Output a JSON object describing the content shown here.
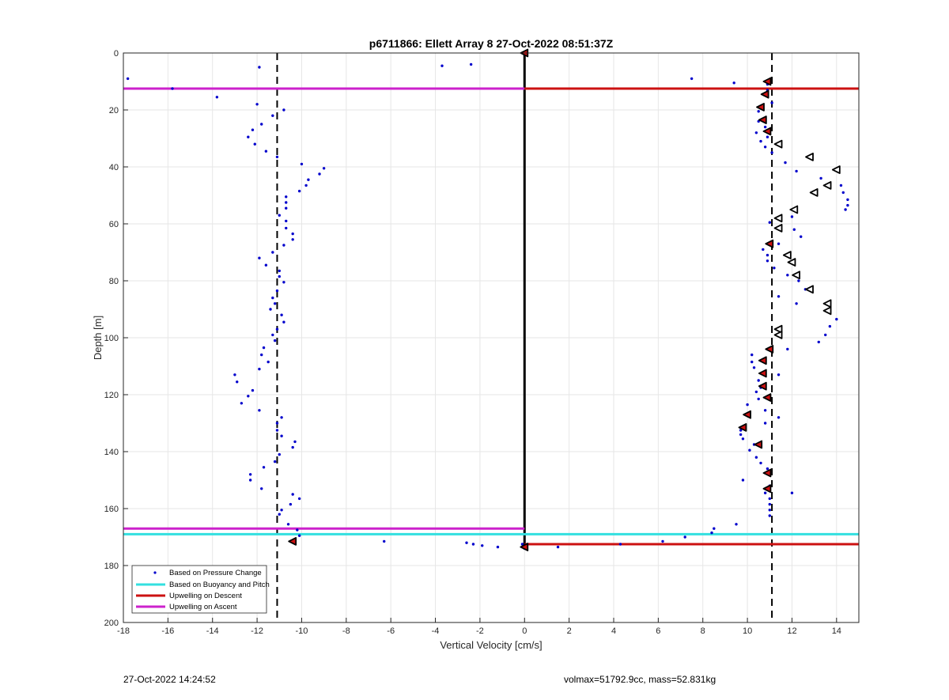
{
  "chart_data": {
    "type": "scatter",
    "title": "p6711866: Ellett Array 8 27-Oct-2022 08:51:37Z",
    "xlabel": "Vertical Velocity [cm/s]",
    "ylabel": "Depth [m]",
    "xlim": [
      -18,
      15
    ],
    "ylim": [
      0,
      200
    ],
    "y_reversed": true,
    "grid": true,
    "x_ticks": [
      -18,
      -16,
      -14,
      -12,
      -10,
      -8,
      -6,
      -4,
      -2,
      0,
      2,
      4,
      6,
      8,
      10,
      12,
      14
    ],
    "y_ticks": [
      0,
      20,
      40,
      60,
      80,
      100,
      120,
      140,
      160,
      180,
      200
    ],
    "legend_position": "bottom-left",
    "legend": [
      {
        "label": "Based on Pressure Change",
        "color": "#0000cc",
        "style": "dot"
      },
      {
        "label": "Based on Buoyancy and Pitch",
        "color": "#33e0e0",
        "style": "line"
      },
      {
        "label": "Upwelling on Descent",
        "color": "#cc1111",
        "style": "line"
      },
      {
        "label": "Upwelling on Ascent",
        "color": "#cc22cc",
        "style": "line"
      }
    ],
    "colors": {
      "pressure": "#0000cc",
      "buoyancy": "#33e0e0",
      "descent": "#cc1111",
      "ascent": "#cc22cc",
      "zero_line": "#000000",
      "dashed_lines": "#000000"
    },
    "dashed_vertical_lines": [
      -11.1,
      11.1
    ],
    "zero_line_x": 0,
    "horizontal_lines": [
      {
        "series": "ascent",
        "y": 12.5,
        "x": [
          -18,
          0
        ]
      },
      {
        "series": "descent",
        "y": 12.5,
        "x": [
          0,
          15
        ]
      },
      {
        "series": "ascent",
        "y": 167,
        "x": [
          -18,
          0
        ]
      },
      {
        "series": "buoyancy",
        "y": 169,
        "x": [
          -18,
          15
        ]
      },
      {
        "series": "descent",
        "y": 172.5,
        "x": [
          0,
          15
        ]
      }
    ],
    "pressure_points": [
      [
        -17.8,
        9
      ],
      [
        -15.8,
        12.5
      ],
      [
        -13.8,
        15.5
      ],
      [
        -11.9,
        5
      ],
      [
        -3.7,
        4.5
      ],
      [
        -2.4,
        4
      ],
      [
        -12,
        18
      ],
      [
        -10.8,
        20
      ],
      [
        -11.3,
        22
      ],
      [
        -11.8,
        25
      ],
      [
        -12.2,
        27
      ],
      [
        -12.4,
        29.5
      ],
      [
        -12.1,
        32
      ],
      [
        -11.6,
        34.5
      ],
      [
        -11.1,
        36.5
      ],
      [
        -10,
        39
      ],
      [
        -9,
        40.5
      ],
      [
        -9.2,
        42.5
      ],
      [
        -9.7,
        44.5
      ],
      [
        -9.8,
        46.5
      ],
      [
        -10.1,
        48.5
      ],
      [
        -10.7,
        50.5
      ],
      [
        -10.7,
        52.5
      ],
      [
        -10.7,
        54.5
      ],
      [
        -11,
        57
      ],
      [
        -10.7,
        59
      ],
      [
        -10.7,
        61.5
      ],
      [
        -10.4,
        63.5
      ],
      [
        -10.4,
        65.5
      ],
      [
        -10.8,
        67.5
      ],
      [
        -11.3,
        70
      ],
      [
        -11.9,
        72
      ],
      [
        -11.6,
        74.5
      ],
      [
        -11,
        76.5
      ],
      [
        -11,
        78.5
      ],
      [
        -10.8,
        80.5
      ],
      [
        -11.1,
        83.5
      ],
      [
        -11.3,
        86
      ],
      [
        -11.2,
        88
      ],
      [
        -11.4,
        90
      ],
      [
        -10.9,
        92
      ],
      [
        -10.8,
        94.5
      ],
      [
        -11.1,
        97
      ],
      [
        -11.3,
        99
      ],
      [
        -11.2,
        101
      ],
      [
        -11.7,
        103.5
      ],
      [
        -11.8,
        106
      ],
      [
        -11.5,
        108.5
      ],
      [
        -11.9,
        111
      ],
      [
        -13,
        113
      ],
      [
        -12.9,
        115.5
      ],
      [
        -12.2,
        118.5
      ],
      [
        -12.4,
        120.5
      ],
      [
        -12.7,
        123
      ],
      [
        -11.9,
        125.5
      ],
      [
        -10.9,
        128
      ],
      [
        -11.1,
        130
      ],
      [
        -11.1,
        132.5
      ],
      [
        -10.9,
        134.5
      ],
      [
        -10.3,
        136.5
      ],
      [
        -10.4,
        138.5
      ],
      [
        -11,
        141
      ],
      [
        -11.2,
        143.5
      ],
      [
        -11.7,
        145.5
      ],
      [
        -12.3,
        148
      ],
      [
        -12.3,
        150
      ],
      [
        -11.8,
        153
      ],
      [
        -10.4,
        155
      ],
      [
        -10.1,
        156.5
      ],
      [
        -10.5,
        158.5
      ],
      [
        -10.9,
        160.5
      ],
      [
        -11,
        162
      ],
      [
        -10.6,
        165.5
      ],
      [
        -10.2,
        167.5
      ],
      [
        -10.1,
        169.5
      ],
      [
        -6.3,
        171.5
      ],
      [
        -2.6,
        172
      ],
      [
        -2.3,
        172.5
      ],
      [
        -1.9,
        173
      ],
      [
        -1.2,
        173.5
      ],
      [
        1.5,
        173.5
      ],
      [
        4.3,
        172.5
      ],
      [
        6.2,
        171.5
      ],
      [
        7.2,
        170
      ],
      [
        8.4,
        168.5
      ],
      [
        8.5,
        167
      ],
      [
        9.5,
        165.5
      ],
      [
        7.5,
        9
      ],
      [
        9.4,
        10.5
      ],
      [
        10.9,
        11
      ],
      [
        10.9,
        13
      ],
      [
        11.1,
        17.5
      ],
      [
        10.5,
        20.5
      ],
      [
        10.5,
        24
      ],
      [
        10.8,
        26
      ],
      [
        10.4,
        28
      ],
      [
        10.9,
        29.5
      ],
      [
        10.6,
        31
      ],
      [
        10.8,
        33
      ],
      [
        11.1,
        35
      ],
      [
        11.7,
        38.5
      ],
      [
        12.2,
        41.5
      ],
      [
        13.3,
        44
      ],
      [
        14.2,
        46.5
      ],
      [
        14.3,
        49
      ],
      [
        14.5,
        51.5
      ],
      [
        14.5,
        53.5
      ],
      [
        14.4,
        55
      ],
      [
        12,
        57.5
      ],
      [
        11,
        59.5
      ],
      [
        12.1,
        62
      ],
      [
        12.4,
        64.5
      ],
      [
        11.4,
        67
      ],
      [
        10.7,
        69
      ],
      [
        10.9,
        71
      ],
      [
        10.9,
        73
      ],
      [
        11.2,
        75.5
      ],
      [
        11.8,
        78
      ],
      [
        12.3,
        80
      ],
      [
        12.6,
        83
      ],
      [
        11.4,
        85.5
      ],
      [
        12.2,
        88
      ],
      [
        13.7,
        91
      ],
      [
        14,
        93.5
      ],
      [
        13.7,
        96
      ],
      [
        13.5,
        99
      ],
      [
        13.2,
        101.5
      ],
      [
        11.8,
        104
      ],
      [
        10.2,
        106
      ],
      [
        10.2,
        108.5
      ],
      [
        10.3,
        110.5
      ],
      [
        11.4,
        113
      ],
      [
        10.5,
        115
      ],
      [
        10.6,
        117.5
      ],
      [
        10.4,
        119
      ],
      [
        10.5,
        121.5
      ],
      [
        10,
        123.5
      ],
      [
        10.8,
        125.5
      ],
      [
        11.4,
        128
      ],
      [
        10.8,
        130
      ],
      [
        9.7,
        132.5
      ],
      [
        9.7,
        134
      ],
      [
        9.8,
        135.5
      ],
      [
        10.3,
        137.5
      ],
      [
        10.1,
        139.5
      ],
      [
        10.4,
        142
      ],
      [
        10.6,
        144
      ],
      [
        10.9,
        146
      ],
      [
        11,
        148
      ],
      [
        9.8,
        150
      ],
      [
        11,
        152
      ],
      [
        10.8,
        154.5
      ],
      [
        12,
        154.5
      ],
      [
        11,
        156.5
      ],
      [
        11,
        158.5
      ],
      [
        11,
        160.5
      ],
      [
        11,
        162.5
      ],
      [
        -0.1,
        172.5
      ],
      [
        0.1,
        173
      ],
      [
        0,
        174
      ]
    ],
    "descent_points": [
      [
        10.9,
        10
      ],
      [
        10.8,
        14.5
      ],
      [
        10.6,
        19
      ],
      [
        10.7,
        23.5
      ],
      [
        10.9,
        27.5
      ],
      [
        11,
        67
      ],
      [
        11,
        104
      ],
      [
        10.7,
        108
      ],
      [
        10.7,
        112.5
      ],
      [
        10.7,
        117
      ],
      [
        10.9,
        121
      ],
      [
        10,
        127
      ],
      [
        9.8,
        131.5
      ],
      [
        10.5,
        137.5
      ],
      [
        10.9,
        147.5
      ],
      [
        10.9,
        153
      ],
      [
        -10.4,
        171.5
      ],
      [
        0,
        173.5
      ],
      [
        0,
        0
      ]
    ],
    "open_triangle_points": [
      [
        11.4,
        32
      ],
      [
        12.8,
        36.5
      ],
      [
        14,
        41
      ],
      [
        13.6,
        46.5
      ],
      [
        13,
        49
      ],
      [
        12.1,
        55
      ],
      [
        11.4,
        58
      ],
      [
        11.4,
        61.5
      ],
      [
        11.8,
        71
      ],
      [
        12,
        73.5
      ],
      [
        12.2,
        78
      ],
      [
        12.8,
        83
      ],
      [
        13.6,
        88
      ],
      [
        13.6,
        90.5
      ],
      [
        11.4,
        97
      ],
      [
        11.4,
        99
      ]
    ]
  },
  "footer": {
    "timestamp": "27-Oct-2022 14:24:52",
    "info": "volmax=51792.9cc, mass=52.831kg"
  }
}
